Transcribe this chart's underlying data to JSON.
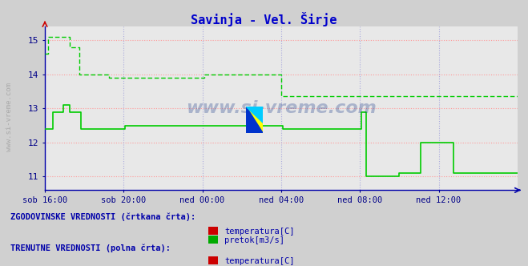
{
  "title": "Savinja - Vel. Širje",
  "title_color": "#0000cc",
  "bg_color": "#d0d0d0",
  "plot_bg_color": "#e8e8e8",
  "xlim": [
    0,
    288
  ],
  "ylim": [
    10.6,
    15.4
  ],
  "yticks": [
    11,
    12,
    13,
    14,
    15
  ],
  "xtick_labels": [
    "sob 16:00",
    "sob 20:00",
    "ned 00:00",
    "ned 04:00",
    "ned 08:00",
    "ned 12:00"
  ],
  "xtick_positions": [
    0,
    48,
    96,
    144,
    192,
    240
  ],
  "watermark": "www.si-vreme.com",
  "grid_color_h": "#ff9999",
  "grid_color_v": "#aaaadd",
  "axis_color": "#0000aa",
  "tick_color": "#000088",
  "solid_color": "#00cc00",
  "dashed_color": "#00cc00",
  "solid_linewidth": 1.2,
  "dashed_linewidth": 1.0,
  "pretok_solid": [
    [
      0,
      12.4
    ],
    [
      5,
      12.9
    ],
    [
      10,
      12.9
    ],
    [
      11,
      13.1
    ],
    [
      14,
      13.1
    ],
    [
      15,
      12.9
    ],
    [
      20,
      12.9
    ],
    [
      22,
      12.4
    ],
    [
      48,
      12.4
    ],
    [
      49,
      12.5
    ],
    [
      96,
      12.5
    ],
    [
      144,
      12.5
    ],
    [
      145,
      12.4
    ],
    [
      192,
      12.4
    ],
    [
      193,
      12.9
    ],
    [
      195,
      12.9
    ],
    [
      196,
      11.0
    ],
    [
      215,
      11.0
    ],
    [
      216,
      11.1
    ],
    [
      228,
      11.1
    ],
    [
      229,
      12.0
    ],
    [
      240,
      12.0
    ],
    [
      248,
      12.0
    ],
    [
      249,
      11.1
    ],
    [
      260,
      11.1
    ],
    [
      288,
      11.1
    ]
  ],
  "pretok_dashed": [
    [
      0,
      14.6
    ],
    [
      2,
      15.1
    ],
    [
      14,
      15.1
    ],
    [
      15,
      14.8
    ],
    [
      20,
      14.8
    ],
    [
      21,
      14.0
    ],
    [
      38,
      14.0
    ],
    [
      39,
      13.9
    ],
    [
      96,
      13.9
    ],
    [
      97,
      14.0
    ],
    [
      143,
      14.0
    ],
    [
      144,
      13.35
    ],
    [
      288,
      13.35
    ]
  ],
  "legend_text_color": "#0000aa",
  "font_family": "monospace"
}
